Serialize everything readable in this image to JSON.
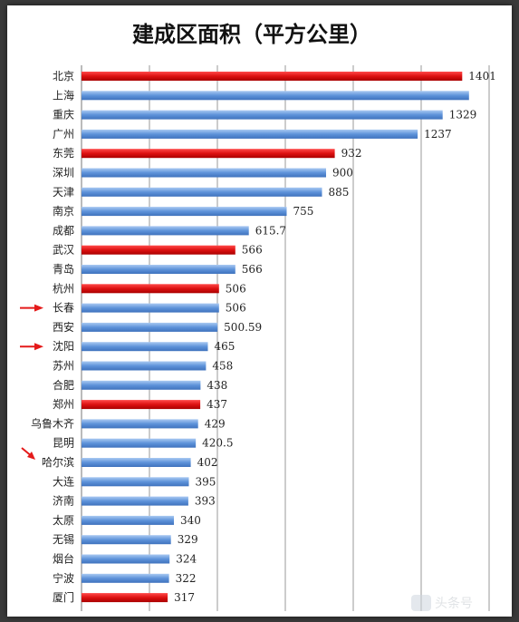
{
  "chart_data": {
    "type": "bar",
    "orientation": "horizontal",
    "title": "建成区面积（平方公里）",
    "xlabel": "",
    "ylabel": "",
    "xlim": [
      0,
      1500
    ],
    "grid": true,
    "categories": [
      "北京",
      "上海",
      "重庆",
      "广州",
      "东莞",
      "深圳",
      "天津",
      "南京",
      "成都",
      "武汉",
      "青岛",
      "杭州",
      "长春",
      "西安",
      "沈阳",
      "苏州",
      "合肥",
      "郑州",
      "乌鲁木齐",
      "昆明",
      "哈尔滨",
      "大连",
      "济南",
      "太原",
      "无锡",
      "烟台",
      "宁波",
      "厦门"
    ],
    "values": [
      1401,
      1426,
      1329,
      1237,
      932,
      900,
      885,
      755,
      615.7,
      566,
      566,
      506,
      506,
      500.59,
      465,
      458,
      438,
      437,
      429,
      420.5,
      402,
      395,
      393,
      340,
      329,
      324,
      322,
      317
    ],
    "value_labels": [
      "1401",
      "",
      "1329",
      "1237",
      "932",
      "900",
      "885",
      "755",
      "615.7",
      "566",
      "566",
      "506",
      "506",
      "500.59",
      "465",
      "458",
      "438",
      "437",
      "429",
      "420.5",
      "402",
      "395",
      "393",
      "340",
      "329",
      "324",
      "322",
      "317"
    ],
    "highlighted": [
      "北京",
      "东莞",
      "武汉",
      "杭州",
      "郑州",
      "厦门"
    ],
    "arrow_marked": [
      "长春",
      "沈阳",
      "哈尔滨"
    ],
    "colors": {
      "highlight": "#dd1111",
      "highlight_dark": "#aa0000",
      "normal_light": "#a9c9f2",
      "normal": "#5e93da",
      "normal_dark": "#3f72bd",
      "arrow": "#e41a1a",
      "grid": "#9a9a9a"
    }
  },
  "watermark": "头条号"
}
